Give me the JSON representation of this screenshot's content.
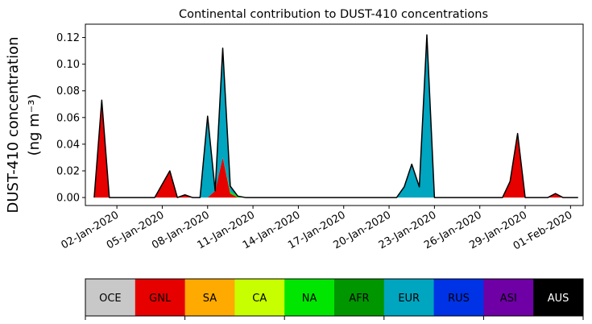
{
  "chart_data": {
    "type": "area",
    "stacked": true,
    "title": "Continental contribution to DUST-410 concentrations",
    "ylabel_line1": "DUST-410 concentration",
    "ylabel_line2": "(ng m⁻³)",
    "xlabel": "",
    "ylim": [
      -0.006,
      0.13
    ],
    "yticks": [
      0.0,
      0.02,
      0.04,
      0.06,
      0.08,
      0.1,
      0.12
    ],
    "ytick_labels": [
      "0.00",
      "0.02",
      "0.04",
      "0.06",
      "0.08",
      "0.10",
      "0.12"
    ],
    "x_start_date": "2019-12-31",
    "x_end_date": "2020-02-01",
    "xlim": [
      "2019-12-30T22:00",
      "2020-02-01T20:00"
    ],
    "xtick_labels": [
      "02-Jan-2020",
      "05-Jan-2020",
      "08-Jan-2020",
      "11-Jan-2020",
      "14-Jan-2020",
      "17-Jan-2020",
      "20-Jan-2020",
      "23-Jan-2020",
      "26-Jan-2020",
      "29-Jan-2020",
      "01-Feb-2020"
    ],
    "xtick_dates": [
      "2020-01-02",
      "2020-01-05",
      "2020-01-08",
      "2020-01-11",
      "2020-01-14",
      "2020-01-17",
      "2020-01-20",
      "2020-01-23",
      "2020-01-26",
      "2020-01-29",
      "2020-02-01"
    ],
    "series": [
      {
        "name": "GNL",
        "color": "#e60000",
        "points": [
          [
            "2019-12-31T12:00",
            0.0
          ],
          [
            "2020-01-01T00:00",
            0.073
          ],
          [
            "2020-01-01T12:00",
            0.0
          ],
          [
            "2020-01-02T12:00",
            0.0
          ],
          [
            "2020-01-03T12:00",
            0.0
          ],
          [
            "2020-01-04T12:00",
            0.0
          ],
          [
            "2020-01-05T12:00",
            0.02
          ],
          [
            "2020-01-06T00:00",
            0.0
          ],
          [
            "2020-01-06T12:00",
            0.002
          ],
          [
            "2020-01-07T00:00",
            0.0
          ],
          [
            "2020-01-08T00:00",
            0.0
          ],
          [
            "2020-01-08T12:00",
            0.005
          ],
          [
            "2020-01-09T00:00",
            0.03
          ],
          [
            "2020-01-09T12:00",
            0.003
          ],
          [
            "2020-01-10T00:00",
            0.0
          ],
          [
            "2020-01-27T12:00",
            0.0
          ],
          [
            "2020-01-28T00:00",
            0.012
          ],
          [
            "2020-01-28T12:00",
            0.048
          ],
          [
            "2020-01-29T00:00",
            0.0
          ],
          [
            "2020-01-30T12:00",
            0.0
          ],
          [
            "2020-01-31T00:00",
            0.003
          ],
          [
            "2020-01-31T12:00",
            0.0
          ],
          [
            "2020-02-01T12:00",
            0.0
          ]
        ]
      },
      {
        "name": "NA",
        "color": "#00e600",
        "points": [
          [
            "2020-01-09T00:00",
            0.0
          ],
          [
            "2020-01-09T12:00",
            0.0015
          ],
          [
            "2020-01-10T00:00",
            0.001
          ],
          [
            "2020-01-10T12:00",
            0.0
          ],
          [
            "2020-02-01T12:00",
            0.0
          ]
        ]
      },
      {
        "name": "EUR",
        "color": "#00a5c0",
        "points": [
          [
            "2019-12-31T12:00",
            0.0
          ],
          [
            "2020-01-01T00:00",
            0.0
          ],
          [
            "2020-01-07T12:00",
            0.0
          ],
          [
            "2020-01-08T00:00",
            0.061
          ],
          [
            "2020-01-08T12:00",
            0.0
          ],
          [
            "2020-01-09T00:00",
            0.082
          ],
          [
            "2020-01-09T12:00",
            0.004
          ],
          [
            "2020-01-10T00:00",
            0.0
          ],
          [
            "2020-01-20T12:00",
            0.0
          ],
          [
            "2020-01-21T00:00",
            0.008
          ],
          [
            "2020-01-21T12:00",
            0.025
          ],
          [
            "2020-01-22T00:00",
            0.008
          ],
          [
            "2020-01-22T12:00",
            0.122
          ],
          [
            "2020-01-23T00:00",
            0.0
          ],
          [
            "2020-02-01T12:00",
            0.0
          ]
        ]
      },
      {
        "name": "AUS",
        "color": "#000000",
        "points": [
          [
            "2019-12-31T12:00",
            0.0
          ],
          [
            "2020-02-01T12:00",
            0.0
          ]
        ]
      }
    ],
    "legend": {
      "placement": "bottom colorbar",
      "entries": [
        {
          "label": "OCE",
          "color": "#c8c8c8",
          "text_color": "#000000"
        },
        {
          "label": "GNL",
          "color": "#e60000",
          "text_color": "#000000"
        },
        {
          "label": "SA",
          "color": "#ffaa00",
          "text_color": "#000000"
        },
        {
          "label": "CA",
          "color": "#c8ff00",
          "text_color": "#000000"
        },
        {
          "label": "NA",
          "color": "#00e600",
          "text_color": "#000000"
        },
        {
          "label": "AFR",
          "color": "#009600",
          "text_color": "#000000"
        },
        {
          "label": "EUR",
          "color": "#00a5c0",
          "text_color": "#000000"
        },
        {
          "label": "RUS",
          "color": "#0032e6",
          "text_color": "#000000"
        },
        {
          "label": "ASI",
          "color": "#6e00a5",
          "text_color": "#000000"
        },
        {
          "label": "AUS",
          "color": "#000000",
          "text_color": "#ffffff"
        }
      ]
    },
    "grid": false
  }
}
